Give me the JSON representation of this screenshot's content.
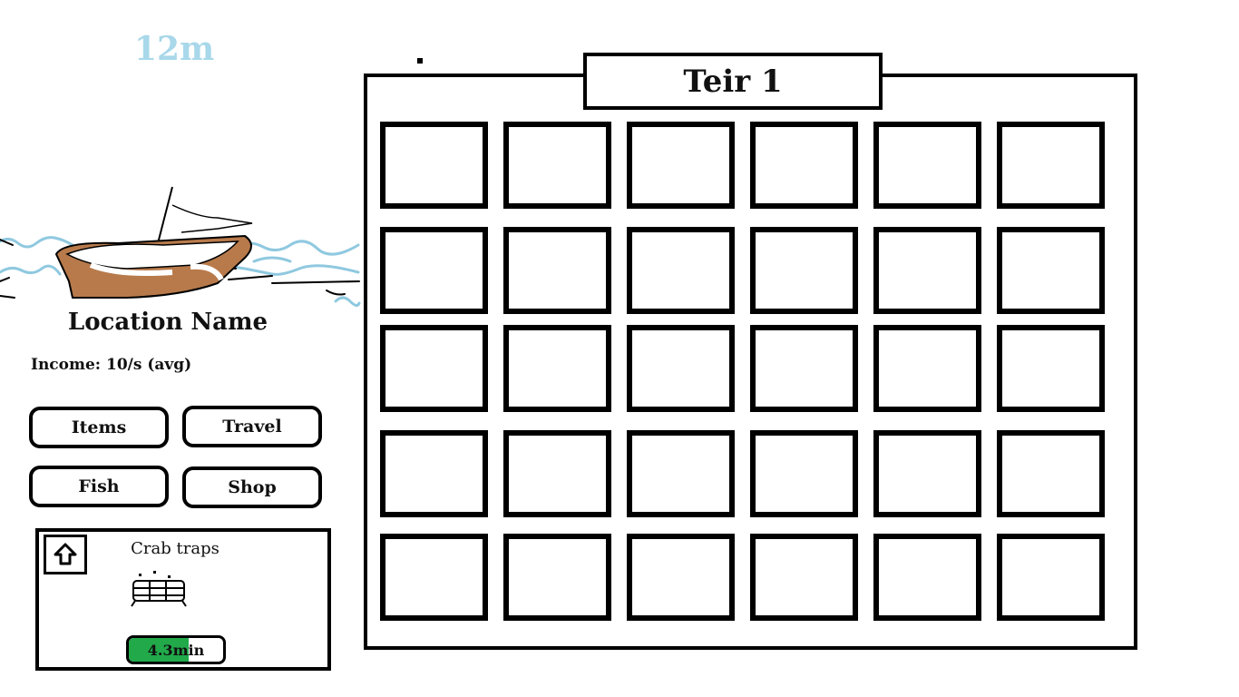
{
  "hud": {
    "depth": "12m"
  },
  "location": {
    "name": "Location Name",
    "income": "Income: 10/s (avg)"
  },
  "menu": {
    "items_label": "Items",
    "travel_label": "Travel",
    "fish_label": "Fish",
    "shop_label": "Shop"
  },
  "trap": {
    "title": "Crab traps",
    "timer_label": "4.3min",
    "progress": 0.63
  },
  "inventory": {
    "tier_label": "Teir 1",
    "rows": 5,
    "cols": 6
  },
  "colors": {
    "depth_text": "#a8d8ea",
    "water": "#8fc9e0",
    "boat_hull": "#b87a4b",
    "progress_fill": "#21a94a"
  },
  "icons": {
    "upgrade": "up-arrow-icon",
    "trap": "crab-trap-icon",
    "boat": "boat-icon"
  }
}
